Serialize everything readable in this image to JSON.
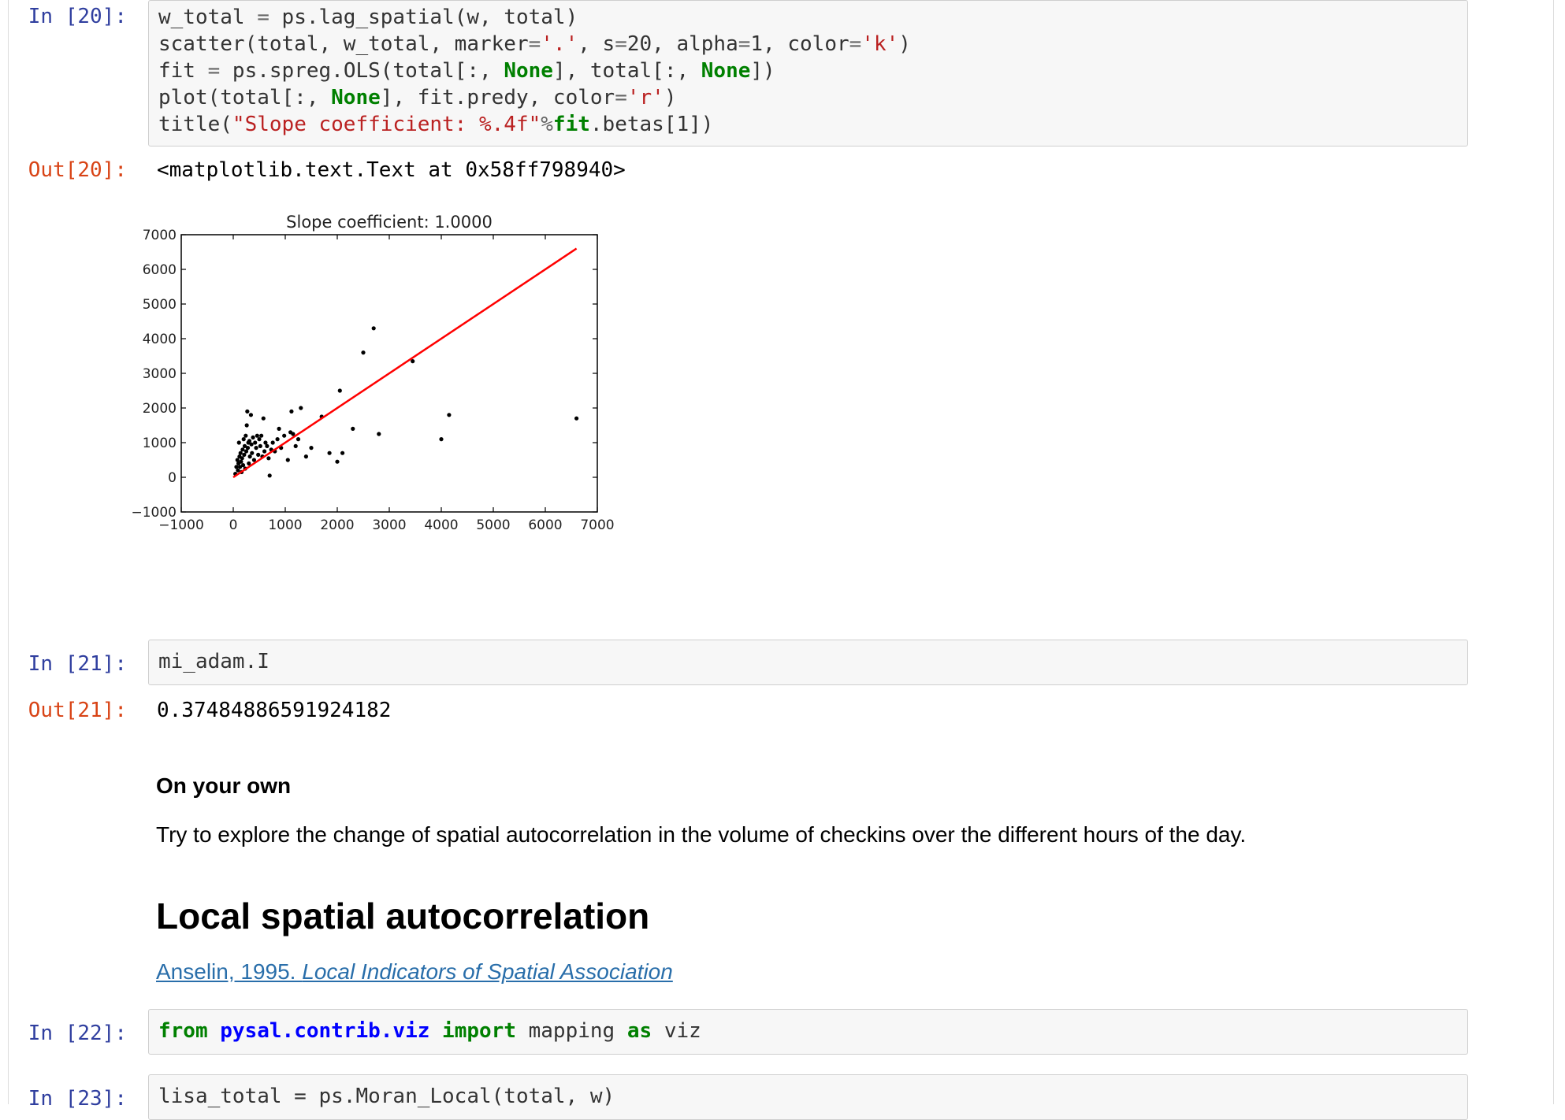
{
  "cells": {
    "c20": {
      "in_prompt": "In [20]:",
      "out_prompt": "Out[20]:",
      "output": "<matplotlib.text.Text at 0x58ff798940>",
      "code_lines": [
        "w_total = ps.lag_spatial(w, total)",
        "scatter(total, w_total, marker='.', s=20, alpha=1, color='k')",
        "fit = ps.spreg.OLS(total[:, None], total[:, None])",
        "plot(total[:, None], fit.predy, color='r')",
        "title(\"Slope coefficient: %.4f\"%fit.betas[1])"
      ]
    },
    "c21": {
      "in_prompt": "In [21]:",
      "out_prompt": "Out[21]:",
      "code": "mi_adam.I",
      "output": "0.37484886591924182"
    },
    "md": {
      "heading4": "On your own",
      "paragraph": "Try to explore the change of spatial autocorrelation in the volume of checkins over the different hours of the day.",
      "heading2": "Local spatial autocorrelation",
      "link_plain": "Anselin, 1995. ",
      "link_italic": "Local Indicators of Spatial Association"
    },
    "c22": {
      "in_prompt": "In [22]:",
      "code": "from pysal.contrib.viz import mapping as viz"
    },
    "c23": {
      "in_prompt": "In [23]:",
      "code": "lisa_total = ps.Moran_Local(total, w)"
    }
  },
  "colors": {
    "in_prompt": "#303f9f",
    "out_prompt": "#d84315",
    "keyword": "#008000",
    "string": "#ba2121",
    "module": "#0000ff",
    "link": "#296eaa",
    "fit_line": "#ff0000",
    "points": "#000000"
  },
  "chart_data": {
    "type": "scatter",
    "title": "Slope coefficient: 1.0000",
    "xlim": [
      -1000,
      7000
    ],
    "ylim": [
      -1000,
      7000
    ],
    "xticks": [
      -1000,
      0,
      1000,
      2000,
      3000,
      4000,
      5000,
      6000,
      7000
    ],
    "yticks": [
      -1000,
      0,
      1000,
      2000,
      3000,
      4000,
      5000,
      6000,
      7000
    ],
    "xtick_labels": [
      "−1000",
      "0",
      "1000",
      "2000",
      "3000",
      "4000",
      "5000",
      "6000",
      "7000"
    ],
    "ytick_labels": [
      "−1000",
      "0",
      "1000",
      "2000",
      "3000",
      "4000",
      "5000",
      "6000",
      "7000"
    ],
    "grid": false,
    "series": [
      {
        "type": "scatter",
        "color": "#000000",
        "points": [
          [
            40,
            100
          ],
          [
            60,
            300
          ],
          [
            80,
            500
          ],
          [
            90,
            200
          ],
          [
            100,
            400
          ],
          [
            110,
            1000
          ],
          [
            120,
            600
          ],
          [
            130,
            300
          ],
          [
            140,
            700
          ],
          [
            150,
            450
          ],
          [
            160,
            150
          ],
          [
            170,
            550
          ],
          [
            180,
            800
          ],
          [
            190,
            350
          ],
          [
            200,
            1100
          ],
          [
            210,
            650
          ],
          [
            220,
            900
          ],
          [
            230,
            250
          ],
          [
            240,
            1200
          ],
          [
            250,
            750
          ],
          [
            260,
            1500
          ],
          [
            270,
            1900
          ],
          [
            280,
            850
          ],
          [
            290,
            1000
          ],
          [
            300,
            400
          ],
          [
            310,
            1050
          ],
          [
            320,
            600
          ],
          [
            340,
            1800
          ],
          [
            350,
            950
          ],
          [
            360,
            700
          ],
          [
            380,
            1150
          ],
          [
            400,
            500
          ],
          [
            420,
            1000
          ],
          [
            440,
            850
          ],
          [
            460,
            1200
          ],
          [
            480,
            650
          ],
          [
            500,
            1100
          ],
          [
            520,
            900
          ],
          [
            540,
            1200
          ],
          [
            560,
            600
          ],
          [
            580,
            1700
          ],
          [
            600,
            750
          ],
          [
            620,
            1000
          ],
          [
            650,
            900
          ],
          [
            680,
            550
          ],
          [
            700,
            50
          ],
          [
            730,
            800
          ],
          [
            760,
            1000
          ],
          [
            800,
            750
          ],
          [
            850,
            1100
          ],
          [
            880,
            1400
          ],
          [
            920,
            850
          ],
          [
            980,
            1200
          ],
          [
            1050,
            500
          ],
          [
            1100,
            1300
          ],
          [
            1120,
            1900
          ],
          [
            1150,
            1250
          ],
          [
            1200,
            900
          ],
          [
            1250,
            1100
          ],
          [
            1300,
            2000
          ],
          [
            1400,
            600
          ],
          [
            1500,
            850
          ],
          [
            1700,
            1750
          ],
          [
            1850,
            700
          ],
          [
            2000,
            450
          ],
          [
            2050,
            2500
          ],
          [
            2100,
            700
          ],
          [
            2300,
            1400
          ],
          [
            2500,
            3600
          ],
          [
            2700,
            4300
          ],
          [
            2800,
            1250
          ],
          [
            3450,
            3350
          ],
          [
            4000,
            1100
          ],
          [
            4150,
            1800
          ],
          [
            6600,
            1700
          ]
        ]
      },
      {
        "type": "line",
        "color": "#ff0000",
        "points": [
          [
            0,
            0
          ],
          [
            6600,
            6600
          ]
        ]
      }
    ]
  }
}
